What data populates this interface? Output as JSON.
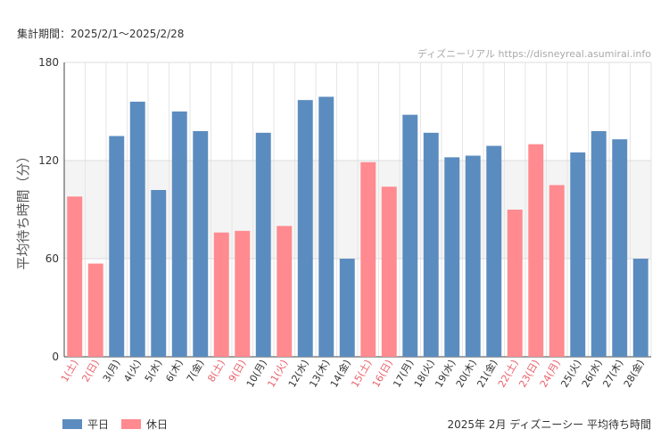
{
  "period_label": "集計期間：2025/2/1～2025/2/28",
  "watermark": "ディズニーリアル https://disneyreal.asumirai.info",
  "caption": "2025年 2月 ディズニーシー 平均待ち時間",
  "legend": [
    {
      "label": "平日",
      "color": "#5b8cbf"
    },
    {
      "label": "休日",
      "color": "#ff8a8f"
    }
  ],
  "chart_data": {
    "type": "bar",
    "ylabel": "平均待ち時間（分）",
    "ylim": [
      0,
      180
    ],
    "yticks": [
      0,
      60,
      120,
      180
    ],
    "shaded_band": [
      60,
      120
    ],
    "categories": [
      "1(土)",
      "2(日)",
      "3(月)",
      "4(火)",
      "5(水)",
      "6(木)",
      "7(金)",
      "8(土)",
      "9(日)",
      "10(月)",
      "11(火)",
      "12(水)",
      "13(木)",
      "14(金)",
      "15(土)",
      "16(日)",
      "17(月)",
      "18(火)",
      "19(水)",
      "20(木)",
      "21(金)",
      "22(土)",
      "23(日)",
      "24(月)",
      "25(火)",
      "26(水)",
      "27(木)",
      "28(金)"
    ],
    "values": [
      98,
      57,
      135,
      156,
      102,
      150,
      138,
      76,
      77,
      137,
      80,
      157,
      159,
      60,
      119,
      104,
      148,
      137,
      122,
      123,
      129,
      90,
      130,
      105,
      125,
      138,
      133,
      60
    ],
    "holiday": [
      true,
      true,
      false,
      false,
      false,
      false,
      false,
      true,
      true,
      false,
      true,
      false,
      false,
      false,
      true,
      true,
      false,
      false,
      false,
      false,
      false,
      true,
      true,
      true,
      false,
      false,
      false,
      false
    ],
    "colors": {
      "weekday": "#5b8cbf",
      "holiday": "#ff8a8f",
      "holiday_label": "#e8616b",
      "weekday_label": "#333333"
    }
  }
}
